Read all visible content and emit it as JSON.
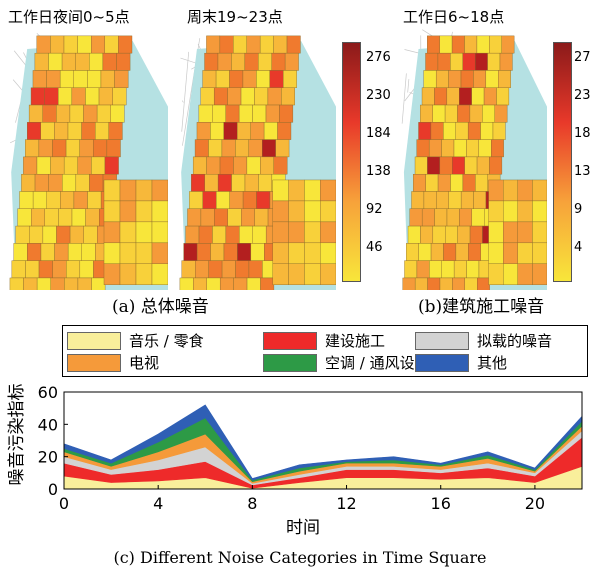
{
  "maps": {
    "titles": [
      "工作日夜间0~5点",
      "周末19~23点",
      "工作日6~18点"
    ],
    "caption_a": "(a) 总体噪音",
    "caption_b": "(b)建筑施工噪音",
    "colorbar_a": {
      "ticks": [
        "276",
        "230",
        "184",
        "138",
        "92",
        "46"
      ],
      "colors": [
        "#8b1a1a",
        "#e8392a",
        "#f7a23a",
        "#f8e63a"
      ]
    },
    "colorbar_b": {
      "ticks": [
        "27",
        "23",
        "18",
        "13",
        "9",
        "4"
      ],
      "colors": [
        "#8b1a1a",
        "#e8392a",
        "#f7a23a",
        "#f8e63a"
      ]
    },
    "water_color": "#b5e1e3"
  },
  "legend": [
    {
      "label": "音乐 / 零食",
      "color": "#f9ef9b"
    },
    {
      "label": "建设施工",
      "color": "#ee2a2a"
    },
    {
      "label": "拟载的噪音",
      "color": "#d3d3d3"
    },
    {
      "label": "电视",
      "color": "#f59a3a"
    },
    {
      "label": "空调 / 通风设备",
      "color": "#2d9a46"
    },
    {
      "label": "其他",
      "color": "#2f5fb5"
    }
  ],
  "chart_data": {
    "type": "area",
    "x": [
      0,
      2,
      4,
      6,
      8,
      10,
      12,
      14,
      16,
      18,
      20,
      22
    ],
    "xticks": [
      0,
      4,
      8,
      12,
      16,
      20
    ],
    "yticks": [
      0,
      20,
      40,
      60
    ],
    "xlim": [
      0,
      22
    ],
    "ylim": [
      0,
      60
    ],
    "xlabel": "时间",
    "ylabel": "噪音污染指标",
    "title": "(c) Different Noise Categories in Time Square",
    "series": [
      {
        "name": "音乐 / 零食",
        "color": "#f9ef9b",
        "values": [
          8,
          4,
          5,
          7,
          0.5,
          4,
          7,
          7,
          6,
          7,
          4,
          14
        ]
      },
      {
        "name": "建设施工",
        "color": "#ee2a2a",
        "values": [
          8,
          5,
          7,
          10,
          2,
          3,
          5,
          5,
          4,
          6,
          4,
          18
        ]
      },
      {
        "name": "拟载的噪音",
        "color": "#d3d3d3",
        "values": [
          4,
          3,
          6,
          9,
          1,
          2,
          2,
          2,
          2,
          3,
          2,
          4
        ]
      },
      {
        "name": "电视",
        "color": "#f59a3a",
        "values": [
          3,
          2,
          5,
          8,
          1,
          2,
          2,
          2,
          2,
          3,
          1,
          3
        ]
      },
      {
        "name": "空调 / 通风设备",
        "color": "#2d9a46",
        "values": [
          2,
          2,
          6,
          10,
          1,
          2,
          1,
          2,
          1,
          2,
          1,
          3
        ]
      },
      {
        "name": "其他",
        "color": "#2f5fb5",
        "values": [
          3,
          2,
          5,
          8,
          1,
          2,
          1,
          2,
          1,
          2,
          1,
          3
        ]
      }
    ]
  }
}
